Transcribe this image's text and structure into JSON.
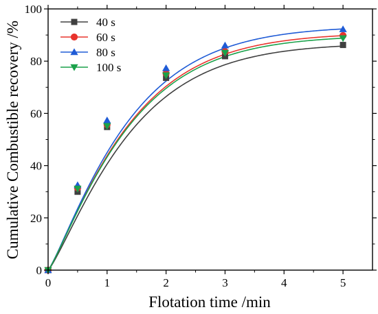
{
  "chart_data": {
    "type": "scatter",
    "title": "",
    "xlabel": "Flotation time /min",
    "ylabel": "Cumulative Combustible recovery /%",
    "xlim": [
      0,
      5.5
    ],
    "ylim": [
      0,
      100
    ],
    "xticks": [
      0,
      1,
      2,
      3,
      4,
      5
    ],
    "yticks": [
      0,
      20,
      40,
      60,
      80,
      100
    ],
    "grid": false,
    "legend_position": "top-left",
    "fitted_curves": true,
    "series": [
      {
        "name": "40 s",
        "color": "#404040",
        "marker": "square",
        "x": [
          0,
          0.5,
          1,
          2,
          3,
          5
        ],
        "y": [
          0,
          30.0,
          54.8,
          73.6,
          81.9,
          86.2
        ],
        "fit": {
          "a": 86.9,
          "b": 0.68,
          "c": 1.2
        }
      },
      {
        "name": "60 s",
        "color": "#e8332c",
        "marker": "circle",
        "x": [
          0,
          0.5,
          1,
          2,
          3,
          5
        ],
        "y": [
          0,
          31.5,
          55.7,
          75.3,
          83.7,
          89.8
        ],
        "fit": {
          "a": 90.9,
          "b": 0.7,
          "c": 1.18
        }
      },
      {
        "name": "80 s",
        "color": "#1f5bd6",
        "marker": "triangle-up",
        "x": [
          0,
          0.5,
          1,
          2,
          3,
          5
        ],
        "y": [
          0,
          32.5,
          57.3,
          77.3,
          86.0,
          92.2
        ],
        "fit": {
          "a": 93.5,
          "b": 0.7,
          "c": 1.18
        }
      },
      {
        "name": "100 s",
        "color": "#1aa14a",
        "marker": "triangle-down",
        "x": [
          0,
          0.5,
          1,
          2,
          3,
          5
        ],
        "y": [
          0,
          31.2,
          55.2,
          74.6,
          83.2,
          88.8
        ],
        "fit": {
          "a": 89.9,
          "b": 0.7,
          "c": 1.18
        }
      }
    ]
  }
}
